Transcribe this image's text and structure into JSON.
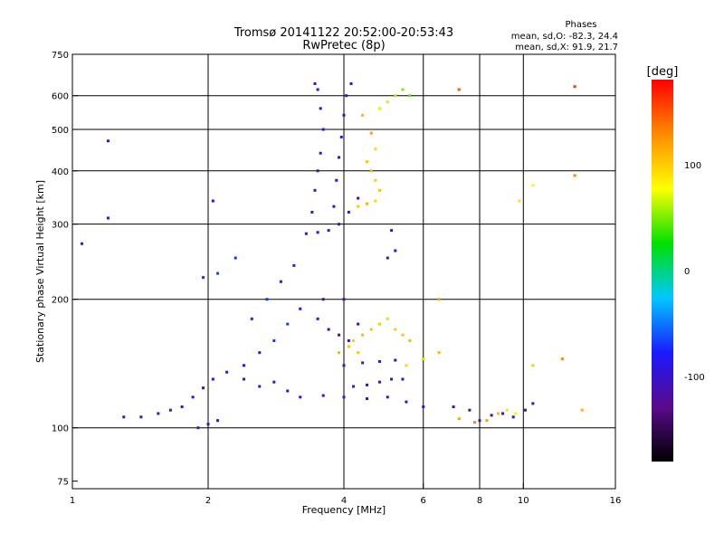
{
  "chart_data": {
    "type": "scatter",
    "title": "Tromsø 20141122 20:52:00-20:53:43",
    "subtitle": "RwPretec (8p)",
    "xlabel": "Frequency [MHz]",
    "ylabel": "Stationary phase Virtual Height [km]",
    "x_scale": "log",
    "y_scale": "log",
    "xlim": [
      1,
      16
    ],
    "ylim": [
      72,
      750
    ],
    "x_ticks": [
      1,
      2,
      4,
      6,
      8,
      10,
      16
    ],
    "y_ticks": [
      75,
      100,
      200,
      300,
      400,
      500,
      600,
      750
    ],
    "x_gridlines": [
      2,
      4,
      6,
      8,
      10
    ],
    "y_gridlines": [
      100,
      200,
      300,
      400,
      500,
      600
    ],
    "grid": true,
    "phase_stats": {
      "heading": "Phases",
      "o_line": "mean, sd,O: -82.3, 24.4",
      "x_line": "mean, sd,X:  91.9, 21.7"
    },
    "colorbar": {
      "label": "[deg]",
      "min": -180,
      "max": 180,
      "ticks": [
        100,
        0,
        -100
      ],
      "colors": [
        "#000000",
        "#5a0a8a",
        "#1a1aff",
        "#00c8ff",
        "#00e000",
        "#ffff00",
        "#ff8c00",
        "#ff0000"
      ]
    },
    "series": [
      {
        "name": "O",
        "points": [
          [
            1.3,
            106,
            -110
          ],
          [
            1.42,
            106,
            -105
          ],
          [
            1.55,
            108,
            -100
          ],
          [
            1.65,
            110,
            -95
          ],
          [
            1.75,
            112,
            -100
          ],
          [
            1.85,
            118,
            -90
          ],
          [
            1.95,
            124,
            -105
          ],
          [
            2.05,
            130,
            -95
          ],
          [
            2.2,
            135,
            -85
          ],
          [
            2.4,
            140,
            -90
          ],
          [
            2.6,
            150,
            -80
          ],
          [
            2.8,
            160,
            -70
          ],
          [
            3.0,
            175,
            -65
          ],
          [
            3.2,
            190,
            -80
          ],
          [
            3.3,
            285,
            -90
          ],
          [
            3.5,
            287,
            -95
          ],
          [
            3.7,
            290,
            -100
          ],
          [
            3.9,
            300,
            -95
          ],
          [
            4.1,
            320,
            -105
          ],
          [
            4.3,
            345,
            -100
          ],
          [
            3.4,
            320,
            -90
          ],
          [
            3.45,
            360,
            -85
          ],
          [
            3.5,
            400,
            -95
          ],
          [
            3.55,
            440,
            -100
          ],
          [
            3.6,
            500,
            -90
          ],
          [
            3.55,
            560,
            -85
          ],
          [
            3.5,
            620,
            -95
          ],
          [
            3.45,
            640,
            -100
          ],
          [
            3.8,
            330,
            -95
          ],
          [
            3.85,
            380,
            -90
          ],
          [
            3.9,
            430,
            -100
          ],
          [
            3.95,
            480,
            -85
          ],
          [
            4.0,
            540,
            -95
          ],
          [
            4.05,
            600,
            -90
          ],
          [
            4.15,
            640,
            -95
          ],
          [
            3.5,
            180,
            -120
          ],
          [
            3.7,
            170,
            -125
          ],
          [
            3.9,
            165,
            -130
          ],
          [
            4.1,
            160,
            -120
          ],
          [
            4.3,
            175,
            -125
          ],
          [
            3.6,
            200,
            -115
          ],
          [
            4.0,
            200,
            -120
          ],
          [
            3.2,
            118,
            -80
          ],
          [
            3.6,
            119,
            -85
          ],
          [
            4.0,
            118,
            -90
          ],
          [
            4.5,
            117,
            -95
          ],
          [
            5.0,
            118,
            -100
          ],
          [
            5.5,
            115,
            -105
          ],
          [
            6.0,
            112,
            -90
          ],
          [
            4.2,
            125,
            -100
          ],
          [
            4.5,
            126,
            -105
          ],
          [
            4.8,
            128,
            -110
          ],
          [
            5.1,
            130,
            -100
          ],
          [
            5.4,
            130,
            -105
          ],
          [
            4.0,
            140,
            -110
          ],
          [
            4.4,
            142,
            -105
          ],
          [
            4.8,
            143,
            -100
          ],
          [
            5.2,
            144,
            -110
          ],
          [
            2.5,
            180,
            -75
          ],
          [
            2.7,
            200,
            -70
          ],
          [
            2.9,
            220,
            -80
          ],
          [
            3.1,
            240,
            -75
          ],
          [
            2.3,
            250,
            -70
          ],
          [
            2.1,
            230,
            -65
          ],
          [
            1.95,
            225,
            -70
          ],
          [
            2.4,
            130,
            -100
          ],
          [
            2.6,
            125,
            -105
          ],
          [
            2.8,
            128,
            -95
          ],
          [
            3.0,
            122,
            -100
          ],
          [
            1.9,
            100,
            -110
          ],
          [
            2.0,
            102,
            -105
          ],
          [
            2.1,
            104,
            -100
          ],
          [
            5.0,
            250,
            -95
          ],
          [
            5.2,
            260,
            -90
          ],
          [
            5.1,
            290,
            -100
          ],
          [
            7.0,
            112,
            -110
          ],
          [
            7.6,
            110,
            -100
          ],
          [
            8.0,
            104,
            -110
          ],
          [
            8.5,
            107,
            -120
          ],
          [
            9.0,
            108,
            -110
          ],
          [
            9.5,
            106,
            -100
          ],
          [
            10.1,
            110,
            -105
          ],
          [
            10.5,
            114,
            -95
          ],
          [
            1.2,
            470,
            -100
          ],
          [
            1.2,
            310,
            -95
          ],
          [
            1.05,
            270,
            -110
          ],
          [
            2.05,
            340,
            -90
          ]
        ]
      },
      {
        "name": "X",
        "points": [
          [
            4.3,
            330,
            100
          ],
          [
            4.5,
            335,
            110
          ],
          [
            4.7,
            340,
            95
          ],
          [
            4.8,
            360,
            105
          ],
          [
            4.7,
            380,
            100
          ],
          [
            4.6,
            400,
            110
          ],
          [
            4.5,
            420,
            105
          ],
          [
            4.7,
            450,
            95
          ],
          [
            4.6,
            490,
            120
          ],
          [
            4.4,
            540,
            110
          ],
          [
            4.8,
            560,
            70
          ],
          [
            5.0,
            580,
            65
          ],
          [
            5.2,
            600,
            60
          ],
          [
            5.4,
            620,
            50
          ],
          [
            5.6,
            600,
            45
          ],
          [
            4.2,
            160,
            100
          ],
          [
            4.4,
            165,
            110
          ],
          [
            4.6,
            170,
            105
          ],
          [
            4.8,
            175,
            100
          ],
          [
            5.0,
            180,
            95
          ],
          [
            5.2,
            170,
            100
          ],
          [
            5.4,
            165,
            105
          ],
          [
            5.6,
            160,
            110
          ],
          [
            3.9,
            150,
            110
          ],
          [
            4.1,
            155,
            105
          ],
          [
            4.3,
            150,
            100
          ],
          [
            5.5,
            140,
            95
          ],
          [
            6.0,
            145,
            100
          ],
          [
            6.5,
            150,
            110
          ],
          [
            7.2,
            105,
            120
          ],
          [
            7.8,
            103,
            130
          ],
          [
            8.3,
            104,
            120
          ],
          [
            8.8,
            108,
            110
          ],
          [
            9.2,
            110,
            70
          ],
          [
            9.6,
            108,
            80
          ],
          [
            7.2,
            620,
            150
          ],
          [
            13.0,
            630,
            160
          ],
          [
            13.0,
            390,
            130
          ],
          [
            9.8,
            340,
            90
          ],
          [
            10.5,
            370,
            80
          ],
          [
            12.2,
            145,
            130
          ],
          [
            10.5,
            140,
            100
          ],
          [
            13.5,
            110,
            110
          ],
          [
            6.5,
            200,
            120
          ]
        ]
      }
    ]
  }
}
